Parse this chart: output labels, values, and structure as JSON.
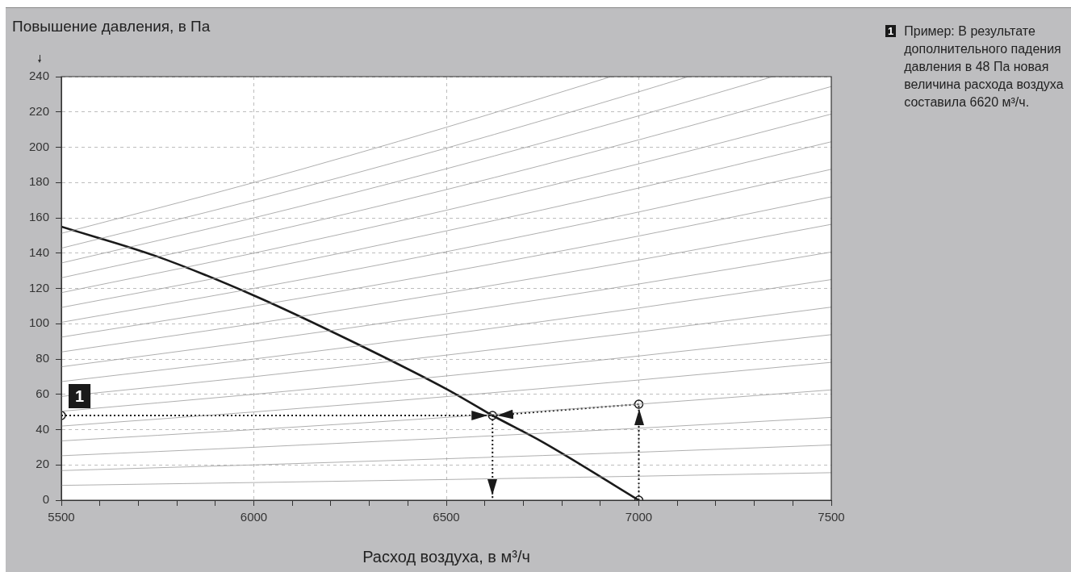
{
  "chart_data": {
    "type": "line",
    "ylabel": "Повышение давления, в Па",
    "xlabel": "Расход воздуха, в м³/ч",
    "xlim": [
      5500,
      7500
    ],
    "xticks": [
      5500,
      {
        "value": 5600,
        "label": null
      },
      {
        "value": 5700,
        "label": null
      },
      {
        "value": 5800,
        "label": null
      },
      {
        "value": 5900,
        "label": null
      },
      6000,
      {
        "value": 6100,
        "label": null
      },
      {
        "value": 6200,
        "label": null
      },
      {
        "value": 6300,
        "label": null
      },
      {
        "value": 6400,
        "label": null
      },
      6500,
      {
        "value": 6600,
        "label": null
      },
      {
        "value": 6700,
        "label": null
      },
      {
        "value": 6800,
        "label": null
      },
      {
        "value": 6900,
        "label": null
      },
      7000,
      {
        "value": 7100,
        "label": null
      },
      {
        "value": 7200,
        "label": null
      },
      {
        "value": 7300,
        "label": null
      },
      {
        "value": 7400,
        "label": null
      },
      7500
    ],
    "ylim": [
      0,
      240
    ],
    "yticks": [
      0,
      20,
      40,
      60,
      80,
      100,
      120,
      140,
      160,
      180,
      200,
      220,
      240
    ],
    "grid": true,
    "legend": false,
    "marker": "none",
    "line_style": "solid",
    "series": [
      {
        "color": "#9a9a9a",
        "x": [
          5500,
          6000,
          6500,
          7000,
          7500
        ],
        "values": [
          8.4,
          10,
          11.7,
          13.6,
          15.6
        ]
      },
      {
        "color": "#9a9a9a",
        "x": [
          5500,
          6000,
          6500,
          7000,
          7500
        ],
        "values": [
          16.8,
          20,
          23.5,
          27.2,
          31.3
        ]
      },
      {
        "color": "#9a9a9a",
        "x": [
          5500,
          6000,
          6500,
          7000,
          7500
        ],
        "values": [
          25.2,
          30,
          35.2,
          40.8,
          46.9
        ]
      },
      {
        "color": "#9a9a9a",
        "x": [
          5500,
          6000,
          6500,
          7000,
          7500
        ],
        "values": [
          33.6,
          40,
          46.9,
          54.4,
          62.5
        ]
      },
      {
        "color": "#9a9a9a",
        "x": [
          5500,
          6000,
          6500,
          7000,
          7500
        ],
        "values": [
          42,
          50,
          58.7,
          68.1,
          78.1
        ]
      },
      {
        "color": "#9a9a9a",
        "x": [
          5500,
          6000,
          6500,
          7000,
          7500
        ],
        "values": [
          50.4,
          60,
          70.4,
          81.7,
          93.8
        ]
      },
      {
        "color": "#9a9a9a",
        "x": [
          5500,
          6000,
          6500,
          7000,
          7500
        ],
        "values": [
          58.8,
          70,
          82.2,
          95.3,
          109.4
        ]
      },
      {
        "color": "#9a9a9a",
        "x": [
          5500,
          6000,
          6500,
          7000,
          7500
        ],
        "values": [
          67.2,
          80,
          93.9,
          108.9,
          125
        ]
      },
      {
        "color": "#9a9a9a",
        "x": [
          5500,
          6000,
          6500,
          7000,
          7500
        ],
        "values": [
          75.6,
          90,
          105.6,
          122.5,
          140.6
        ]
      },
      {
        "color": "#9a9a9a",
        "x": [
          5500,
          6000,
          6500,
          7000,
          7500
        ],
        "values": [
          84,
          100,
          117.4,
          136.1,
          156.3
        ]
      },
      {
        "color": "#9a9a9a",
        "x": [
          5500,
          6000,
          6500,
          7000,
          7500
        ],
        "values": [
          92.4,
          110,
          129.1,
          149.7,
          171.9
        ]
      },
      {
        "color": "#9a9a9a",
        "x": [
          5500,
          6000,
          6500,
          7000,
          7500
        ],
        "values": [
          100.8,
          120,
          140.8,
          163.3,
          187.5
        ]
      },
      {
        "color": "#9a9a9a",
        "x": [
          5500,
          6000,
          6500,
          7000,
          7500
        ],
        "values": [
          109.2,
          130,
          152.6,
          176.9,
          203.1
        ]
      },
      {
        "color": "#9a9a9a",
        "x": [
          5500,
          6000,
          6500,
          7000,
          7500
        ],
        "values": [
          117.6,
          140,
          164.3,
          190.6,
          218.8
        ]
      },
      {
        "color": "#9a9a9a",
        "x": [
          5500,
          6000,
          6500,
          7000,
          7500
        ],
        "values": [
          126,
          150,
          176,
          204.2,
          234.4
        ]
      },
      {
        "color": "#9a9a9a",
        "x": [
          5500,
          6000,
          6500,
          7000,
          7348
        ],
        "values": [
          134.4,
          160,
          187.8,
          217.8,
          240
        ]
      },
      {
        "color": "#9a9a9a",
        "x": [
          5500,
          6000,
          6500,
          7000,
          7129
        ],
        "values": [
          142.8,
          170,
          199.5,
          231.4,
          240
        ]
      },
      {
        "color": "#9a9a9a",
        "x": [
          5500,
          6000,
          6500,
          6928
        ],
        "values": [
          151.2,
          180,
          211.3,
          240
        ]
      },
      {
        "color": "#1a1a1a",
        "x": [
          5500,
          5750,
          6000,
          6250,
          6500,
          6620,
          6750,
          7000
        ],
        "values": [
          155,
          138,
          116,
          90.5,
          63,
          48,
          33,
          0
        ]
      },
      {
        "color": "#1a1a1a",
        "line_style": "dotted",
        "marker": "circle",
        "x": [
          5500,
          6620
        ],
        "values": [
          48,
          48
        ]
      },
      {
        "color": "#1a1a1a",
        "line_style": "dotted",
        "marker": "circle",
        "x": [
          7000,
          7000
        ],
        "values": [
          0,
          54.4
        ]
      },
      {
        "color": "#1a1a1a",
        "line_style": "dotted",
        "marker": "none",
        "x": [
          7000,
          6620
        ],
        "values": [
          54.4,
          48
        ]
      },
      {
        "color": "#1a1a1a",
        "line_style": "dotted",
        "marker": "none",
        "x": [
          6620,
          6620
        ],
        "values": [
          48,
          0
        ]
      }
    ],
    "annotations": [
      {
        "text": "1",
        "x": 5500,
        "y": 48
      },
      "1",
      "Пример: В результате дополнительного падения давления в 48 Па новая величина расхода воздуха составила 6620 м³/ч."
    ]
  }
}
